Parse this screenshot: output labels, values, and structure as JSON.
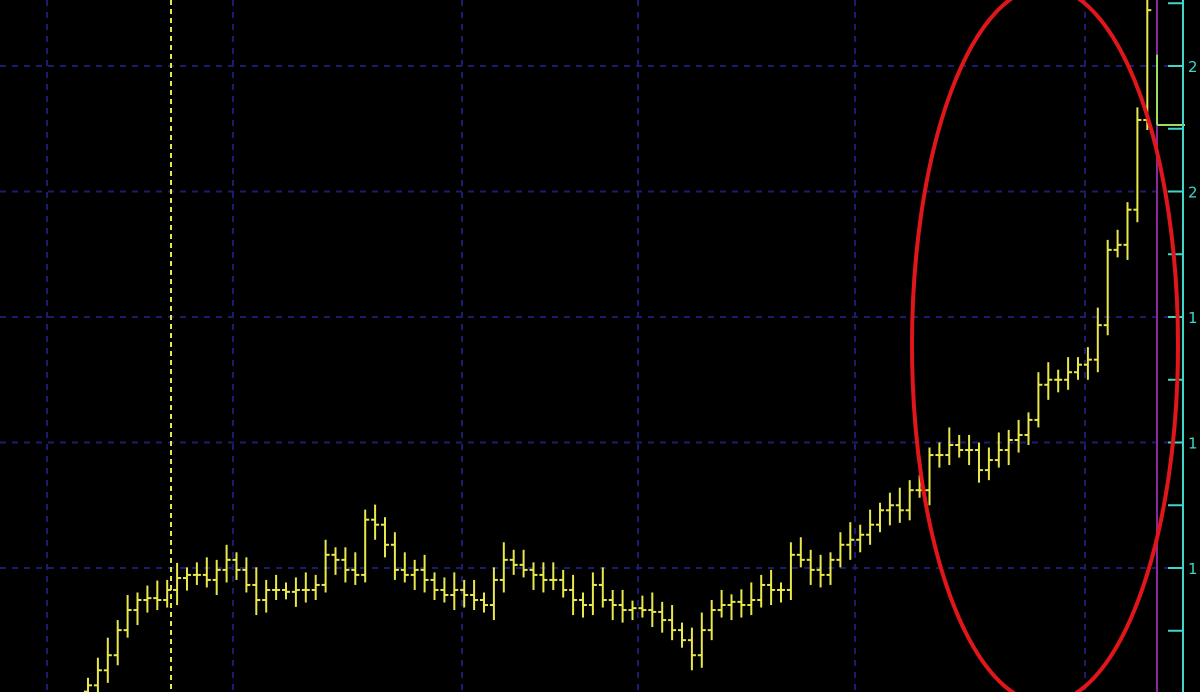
{
  "chart_data": {
    "type": "ohlc-bar",
    "title": "",
    "xlabel": "",
    "ylabel": "",
    "y_tick_labels": [
      "2",
      "2",
      "1",
      "1",
      "1"
    ],
    "y_tick_values_estimated": [
      2.2,
      2.0,
      1.8,
      1.6,
      1.4
    ],
    "ylim": [
      1.2,
      2.3
    ],
    "grid": true,
    "colors": {
      "background": "#000000",
      "bars": "#e8e84a",
      "last_bar": "#9be05a",
      "grid": "#1c1c6e",
      "axis": "#3fd6c8",
      "marker_line": "#e8e84a",
      "current_line": "#8a2a9a",
      "annotation": "#e0161a"
    },
    "series": [
      {
        "close": [
          1.213,
          1.237,
          1.261,
          1.301,
          1.333,
          1.349,
          1.352,
          1.349,
          1.365,
          1.384,
          1.389,
          1.389,
          1.381,
          1.397,
          1.413,
          1.397,
          1.373,
          1.349,
          1.365,
          1.365,
          1.362,
          1.365,
          1.365,
          1.373,
          1.421,
          1.413,
          1.397,
          1.389,
          1.477,
          1.469,
          1.437,
          1.397,
          1.389,
          1.397,
          1.381,
          1.365,
          1.357,
          1.365,
          1.357,
          1.349,
          1.341,
          1.381,
          1.413,
          1.405,
          1.397,
          1.389,
          1.381,
          1.381,
          1.365,
          1.349,
          1.341,
          1.373,
          1.349,
          1.341,
          1.333,
          1.336,
          1.333,
          1.33,
          1.317,
          1.301,
          1.285,
          1.261,
          1.301,
          1.333,
          1.341,
          1.346,
          1.341,
          1.349,
          1.373,
          1.365,
          1.365,
          1.421,
          1.413,
          1.397,
          1.389,
          1.413,
          1.437,
          1.445,
          1.453,
          1.469,
          1.492,
          1.5,
          1.492,
          1.524,
          1.524,
          1.58,
          1.58,
          1.596,
          1.588,
          1.588,
          1.556,
          1.572,
          1.588,
          1.604,
          1.612,
          1.636,
          1.692,
          1.7,
          1.7,
          1.712,
          1.724,
          1.732,
          1.787,
          1.907,
          1.915,
          1.971,
          2.114,
          2.289
        ]
      }
    ],
    "last_bar": {
      "open": 2.106,
      "high": 2.218,
      "low": 2.106,
      "close": 2.106
    },
    "annotations": [
      {
        "type": "ellipse",
        "description_of_region": "final rally"
      },
      {
        "type": "vertical-dashed-line"
      }
    ]
  }
}
